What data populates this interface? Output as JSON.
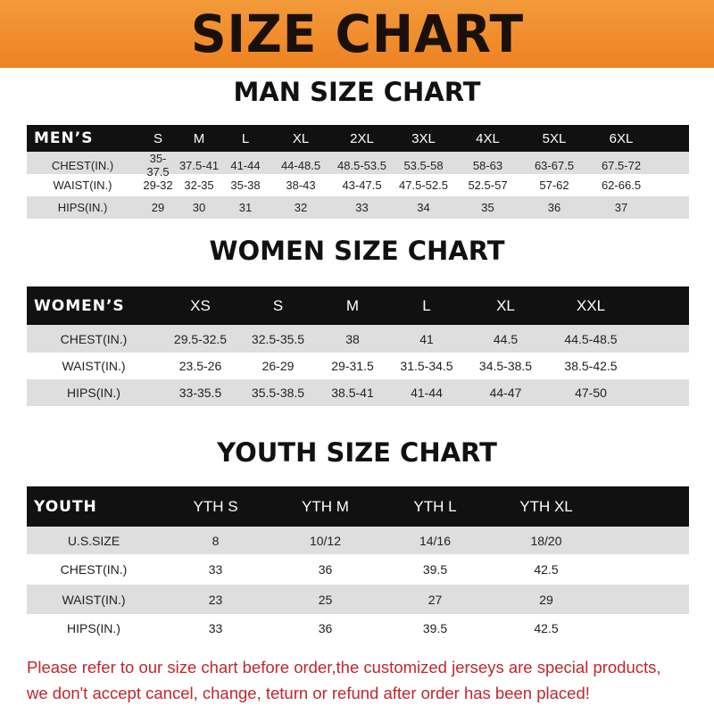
{
  "banner": {
    "title": "SIZE CHART"
  },
  "men": {
    "title": "MAN SIZE CHART",
    "header": [
      "MEN’S",
      "S",
      "M",
      "L",
      "XL",
      "2XL",
      "3XL",
      "4XL",
      "5XL",
      "6XL"
    ],
    "rows": [
      [
        "CHEST(IN.)",
        "35-37.5",
        "37.5-41",
        "41-44",
        "44-48.5",
        "48.5-53.5",
        "53.5-58",
        "58-63",
        "63-67.5",
        "67.5-72"
      ],
      [
        "WAIST(IN.)",
        "29-32",
        "32-35",
        "35-38",
        "38-43",
        "43-47.5",
        "47.5-52.5",
        "52.5-57",
        "57-62",
        "62-66.5"
      ],
      [
        "HIPS(IN.)",
        "29",
        "30",
        "31",
        "32",
        "33",
        "34",
        "35",
        "36",
        "37"
      ]
    ]
  },
  "women": {
    "title": "WOMEN SIZE CHART",
    "header": [
      "WOMEN’S",
      "XS",
      "S",
      "M",
      "L",
      "XL",
      "XXL"
    ],
    "rows": [
      [
        "CHEST(IN.)",
        "29.5-32.5",
        "32.5-35.5",
        "38",
        "41",
        "44.5",
        "44.5-48.5"
      ],
      [
        "WAIST(IN.)",
        "23.5-26",
        "26-29",
        "29-31.5",
        "31.5-34.5",
        "34.5-38.5",
        "38.5-42.5"
      ],
      [
        "HIPS(IN.)",
        "33-35.5",
        "35.5-38.5",
        "38.5-41",
        "41-44",
        "44-47",
        "47-50"
      ]
    ]
  },
  "youth": {
    "title": "YOUTH SIZE CHART",
    "header": [
      "YOUTH",
      "YTH S",
      "YTH M",
      "YTH L",
      "YTH XL"
    ],
    "rows": [
      [
        "U.S.SIZE",
        "8",
        "10/12",
        "14/16",
        "18/20"
      ],
      [
        "CHEST(IN.)",
        "33",
        "36",
        "39.5",
        "42.5"
      ],
      [
        "WAIST(IN.)",
        "23",
        "25",
        "27",
        "29"
      ],
      [
        "HIPS(IN.)",
        "33",
        "36",
        "39.5",
        "42.5"
      ]
    ]
  },
  "note": {
    "line1": "Please refer to our size chart before order,the customized jerseys are special products,",
    "line2": "we don't accept cancel, change, teturn or refund after order has been placed!"
  },
  "colors": {
    "banner": "#ef8a2a",
    "header_row": "#111111",
    "stripe": "#dedede",
    "note": "#c0262c"
  }
}
